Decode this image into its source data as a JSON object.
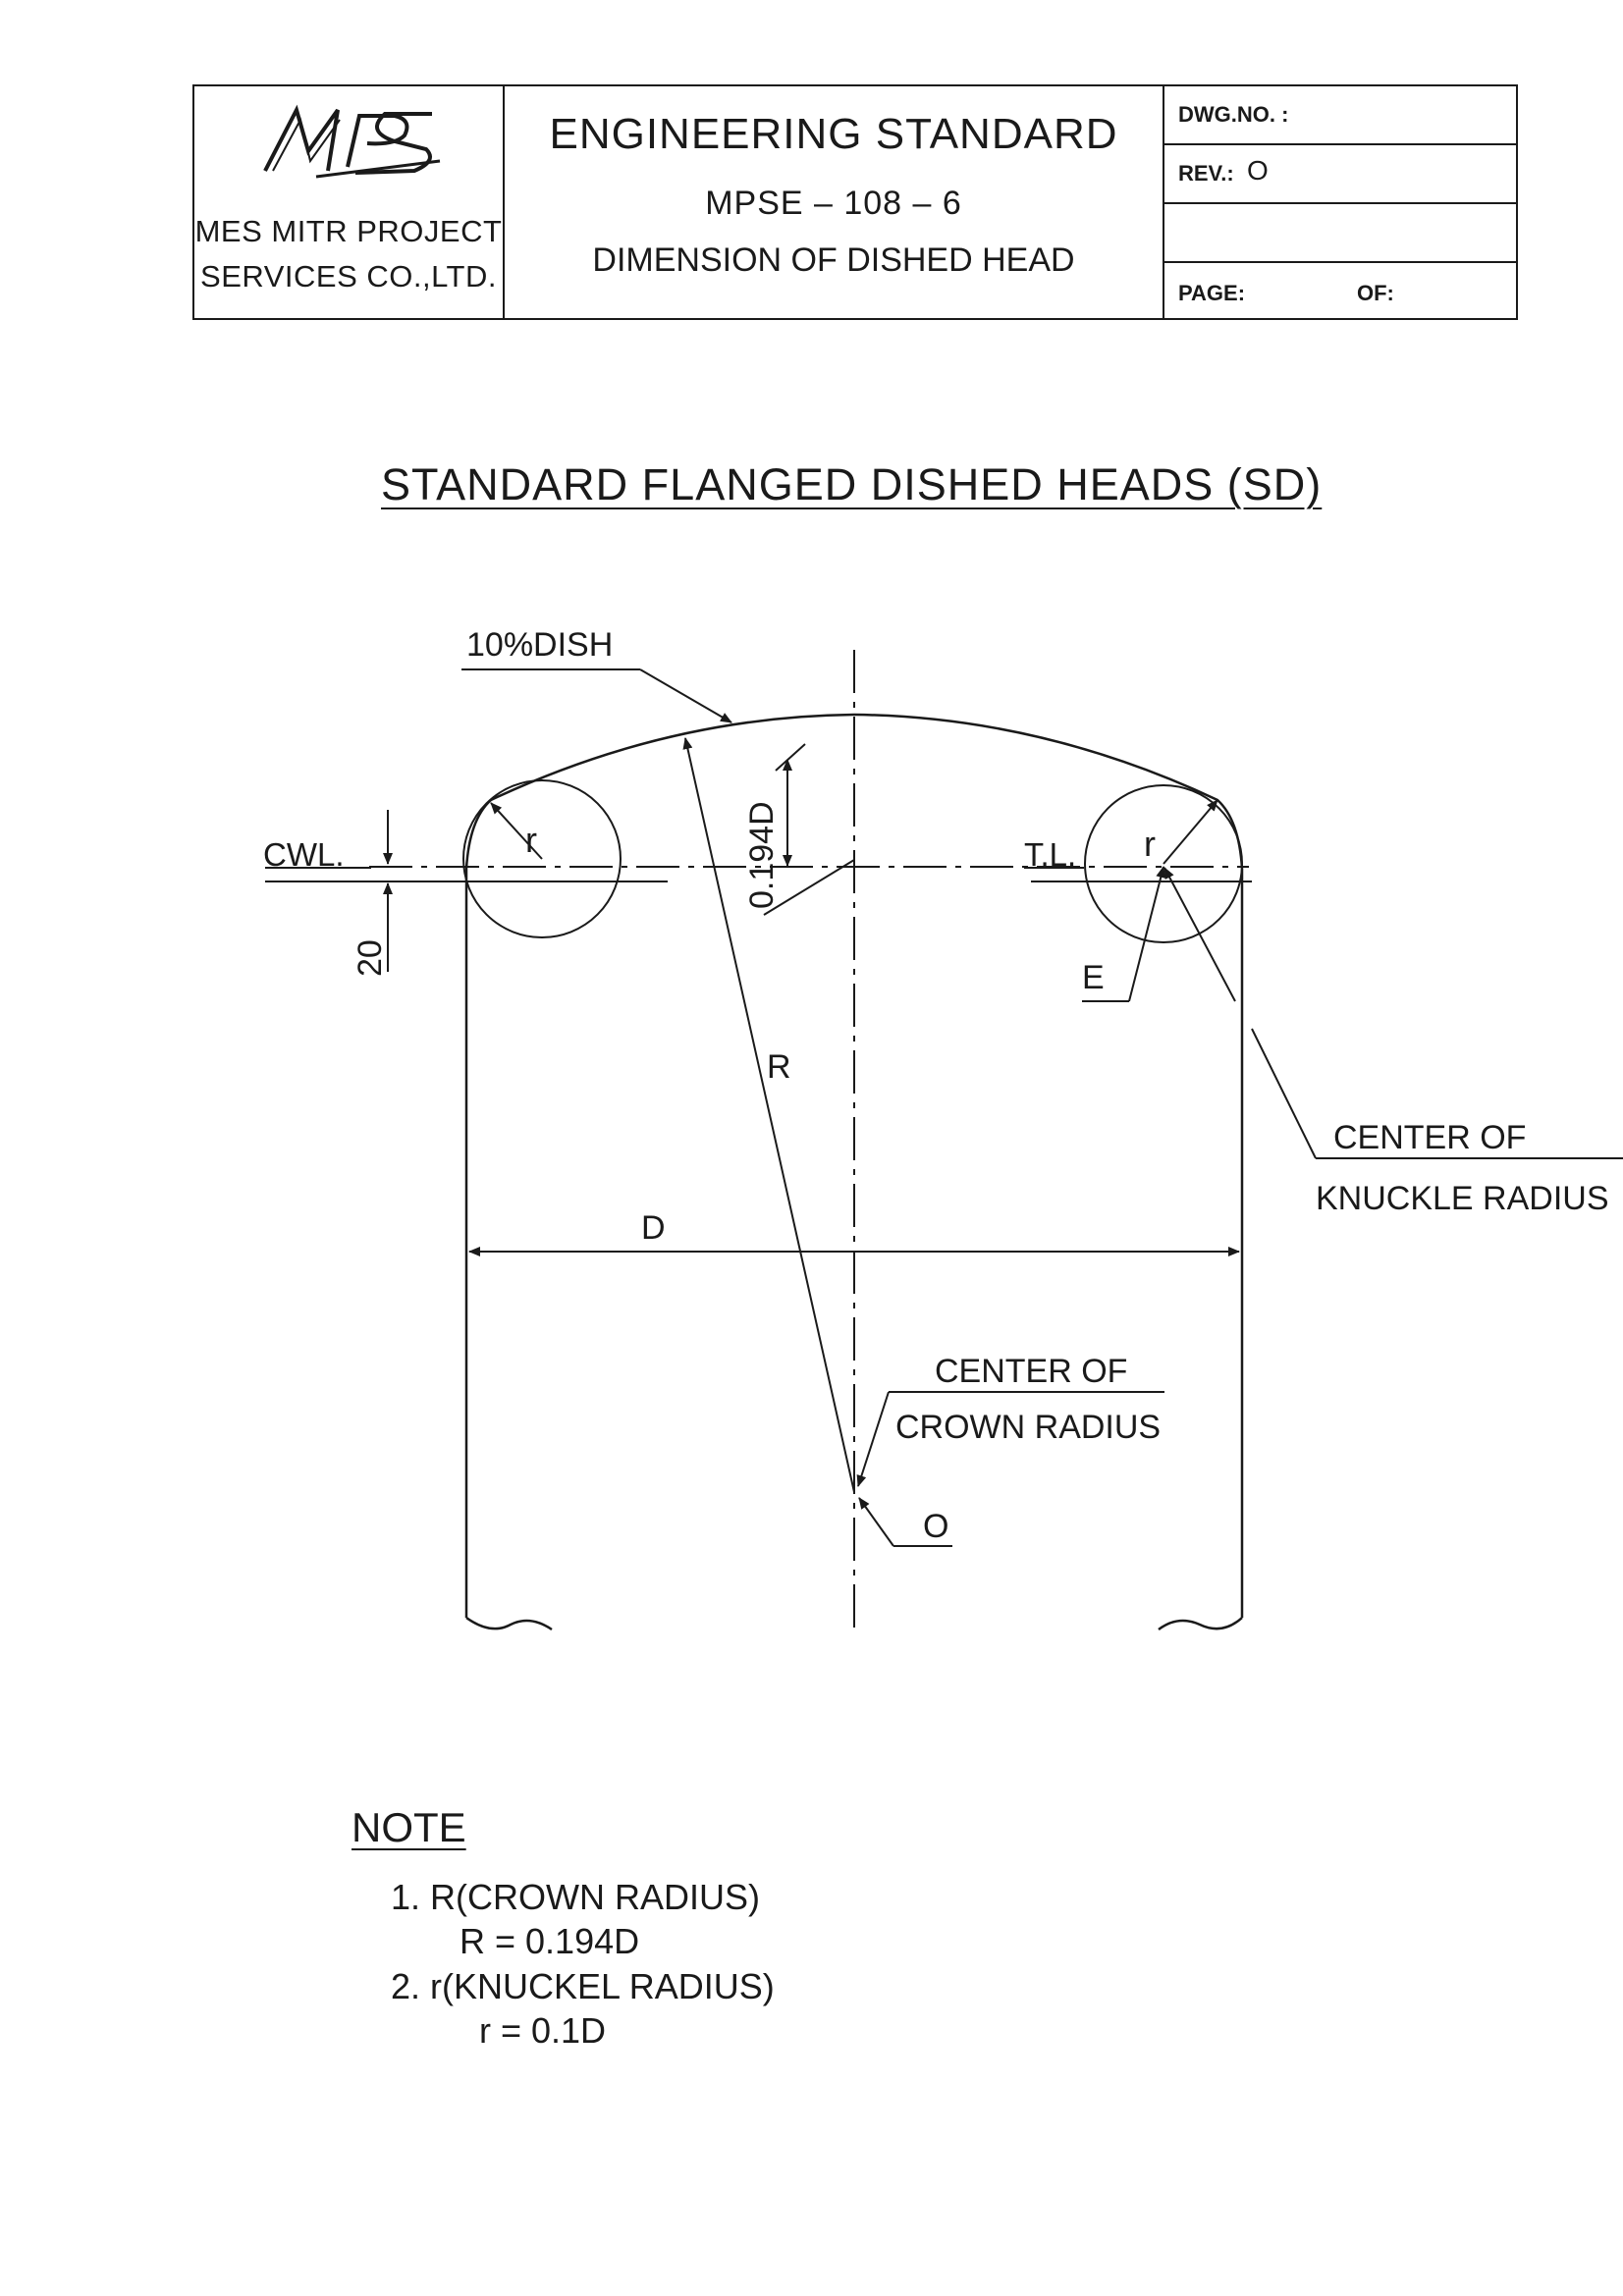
{
  "title_block": {
    "logo_text": "MPS",
    "company_line1": "MES MITR PROJECT",
    "company_line2": "SERVICES CO.,LTD.",
    "heading": "ENGINEERING STANDARD",
    "standard_no": "MPSE – 108 – 6",
    "subject": "DIMENSION OF DISHED HEAD",
    "dwg_no_label": "DWG.NO. :",
    "rev_label": "REV.:",
    "rev_value": "O",
    "page_label": "PAGE:",
    "of_label": "OF:"
  },
  "sheet_title": "STANDARD FLANGED DISHED HEADS (SD)",
  "drawing": {
    "dish_label": "10%DISH",
    "knuckle_label_left": "r",
    "knuckle_label_right": "r",
    "cwl_label": "CWL.",
    "tl_label": "T.L.",
    "height_label": "0.194D",
    "offset_label": "20",
    "e_label": "E",
    "crown_radius_label": "R",
    "diameter_label": "D",
    "center_knuckle_line1": "CENTER OF",
    "center_knuckle_line2": "KNUCKLE RADIUS",
    "center_crown_line1": "CENTER OF",
    "center_crown_line2": "CROWN RADIUS",
    "origin_label": "O"
  },
  "notes": {
    "heading": "NOTE",
    "items": [
      {
        "text": "1. R(CROWN RADIUS)",
        "formula": "R = 0.194D"
      },
      {
        "text": "2. r(KNUCKEL RADIUS)",
        "formula": "r = 0.1D"
      }
    ]
  }
}
